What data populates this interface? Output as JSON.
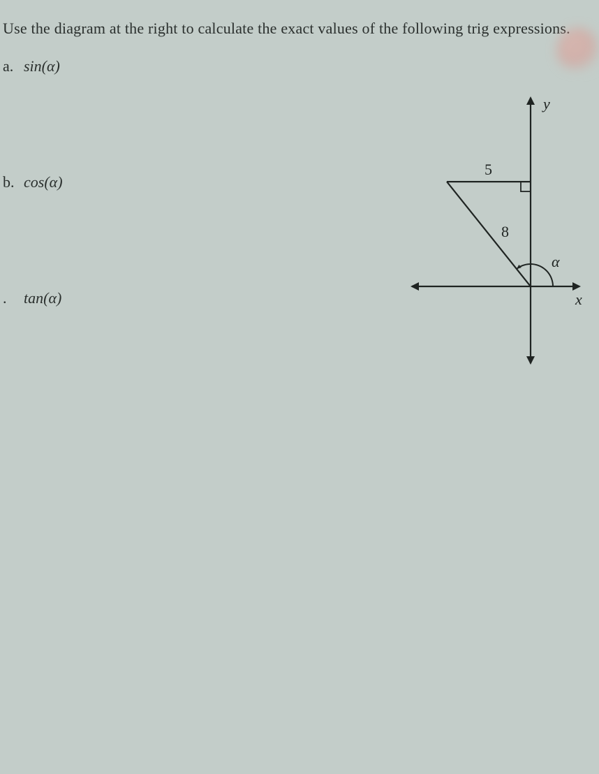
{
  "instruction": "Use the diagram at the right to calculate the exact values of the following trig expressions.",
  "items": [
    {
      "label": "a.",
      "expr": "sin(α)",
      "spacing_after": 140
    },
    {
      "label": "b.",
      "expr": "cos(α)",
      "spacing_after": 140
    },
    {
      "label": ".",
      "expr": "tan(α)",
      "spacing_after": 140
    }
  ],
  "diagram": {
    "stroke_color": "#1f2422",
    "stroke_width": 2.2,
    "axis_labels": {
      "x": "x",
      "y": "y"
    },
    "hypotenuse_label": "8",
    "adjacent_label": "5",
    "angle_label": "α",
    "label_font_size": 22,
    "label_font_style": "italic",
    "arrow_size": 10
  }
}
